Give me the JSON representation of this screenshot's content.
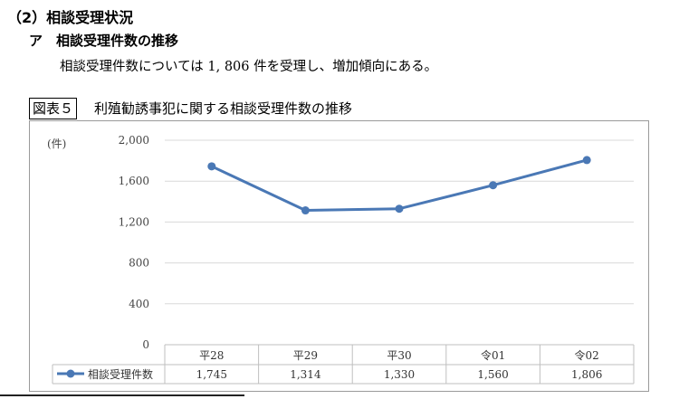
{
  "heading": {
    "section": "（2）相談受理状況",
    "subsection": "ア　相談受理件数の推移",
    "body_text": "相談受理件数については 1, 806 件を受理し、増加傾向にある。"
  },
  "figure": {
    "caption_label": "図表５",
    "caption_title": "利殖勧誘事犯に関する相談受理件数の推移"
  },
  "chart_data": {
    "type": "line",
    "unit_label": "(件)",
    "categories": [
      "平28",
      "平29",
      "平30",
      "令01",
      "令02"
    ],
    "series": [
      {
        "name": "相談受理件数",
        "values": [
          1745,
          1314,
          1330,
          1560,
          1806
        ],
        "value_labels": [
          "1,745",
          "1,314",
          "1,330",
          "1,560",
          "1,806"
        ]
      }
    ],
    "ylim": [
      0,
      2000
    ],
    "yticks": [
      0,
      400,
      800,
      1200,
      1600,
      2000
    ],
    "ytick_labels": [
      "0",
      "400",
      "800",
      "1,200",
      "1,600",
      "2,000"
    ],
    "grid": true,
    "data_table": true,
    "colors": {
      "line": "#4a78b5",
      "grid": "#d9d9d9",
      "table_border": "#bfbfbf"
    }
  }
}
